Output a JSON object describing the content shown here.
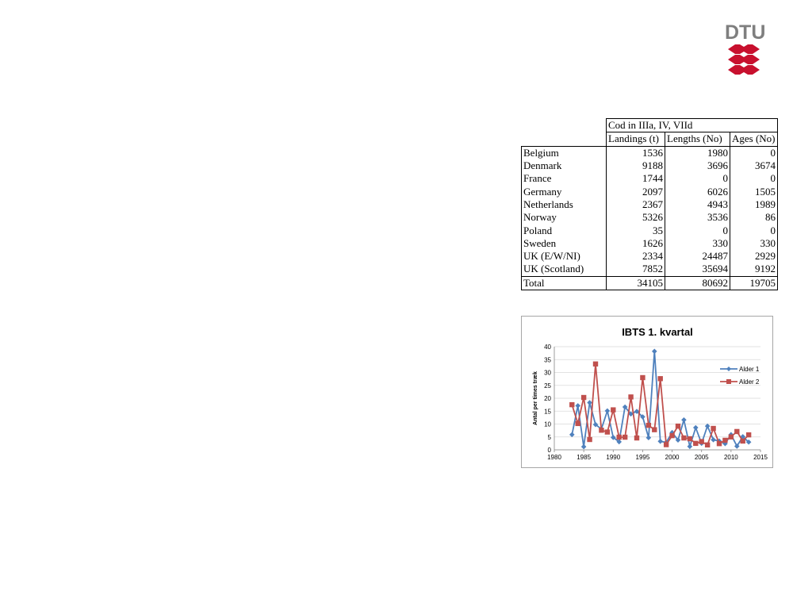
{
  "logo": {
    "text": "DTU"
  },
  "table": {
    "title": "Cod in IIIa, IV, VIId",
    "headers": [
      "Landings (t)",
      "Lengths (No)",
      "Ages (No)"
    ],
    "rows": [
      {
        "country": "Belgium",
        "values": [
          "1536",
          "1980",
          "0"
        ]
      },
      {
        "country": "Denmark",
        "values": [
          "9188",
          "3696",
          "3674"
        ]
      },
      {
        "country": "France",
        "values": [
          "1744",
          "0",
          "0"
        ]
      },
      {
        "country": "Germany",
        "values": [
          "2097",
          "6026",
          "1505"
        ]
      },
      {
        "country": "Netherlands",
        "values": [
          "2367",
          "4943",
          "1989"
        ]
      },
      {
        "country": "Norway",
        "values": [
          "5326",
          "3536",
          "86"
        ]
      },
      {
        "country": "Poland",
        "values": [
          "35",
          "0",
          "0"
        ]
      },
      {
        "country": "Sweden",
        "values": [
          "1626",
          "330",
          "330"
        ]
      },
      {
        "country": "UK (E/W/NI)",
        "values": [
          "2334",
          "24487",
          "2929"
        ]
      },
      {
        "country": "UK (Scotland)",
        "values": [
          "7852",
          "35694",
          "9192"
        ]
      }
    ],
    "total": {
      "label": "Total",
      "values": [
        "34105",
        "80692",
        "19705"
      ]
    }
  },
  "chart_data": {
    "type": "line",
    "title": "IBTS 1. kvartal",
    "xlabel": "",
    "ylabel": "Antal per times træk",
    "xlim": [
      1980,
      2015
    ],
    "ylim": [
      0,
      40
    ],
    "xticks": [
      1980,
      1985,
      1990,
      1995,
      2000,
      2005,
      2010,
      2015
    ],
    "yticks": [
      0,
      5,
      10,
      15,
      20,
      25,
      30,
      35,
      40
    ],
    "grid": true,
    "legend_position": "right",
    "x": [
      1983,
      1984,
      1985,
      1986,
      1987,
      1988,
      1989,
      1990,
      1991,
      1992,
      1993,
      1994,
      1995,
      1996,
      1997,
      1998,
      1999,
      2000,
      2001,
      2002,
      2003,
      2004,
      2005,
      2006,
      2007,
      2008,
      2009,
      2010,
      2011,
      2012,
      2013
    ],
    "series": [
      {
        "name": "Alder 1",
        "color": "#4f81bd",
        "marker": "diamond",
        "values": [
          5.9,
          17.1,
          1.2,
          18.3,
          9.8,
          8.1,
          15.1,
          4.8,
          3.1,
          16.6,
          13.9,
          14.9,
          12.8,
          4.7,
          38.2,
          3.3,
          2.9,
          6.7,
          3.8,
          11.6,
          1.3,
          8.6,
          2.5,
          9.2,
          3.9,
          3.4,
          2.4,
          5.9,
          1.4,
          5.1,
          3.0
        ]
      },
      {
        "name": "Alder 2",
        "color": "#c0504d",
        "marker": "square",
        "values": [
          17.5,
          10.2,
          20.3,
          4.0,
          33.3,
          7.6,
          6.9,
          15.5,
          4.9,
          4.9,
          20.5,
          4.6,
          28.0,
          9.5,
          7.8,
          27.6,
          2.0,
          5.5,
          9.2,
          4.6,
          4.3,
          2.5,
          3.2,
          1.9,
          8.3,
          2.4,
          3.7,
          5.0,
          7.1,
          3.4,
          5.8
        ]
      }
    ]
  }
}
